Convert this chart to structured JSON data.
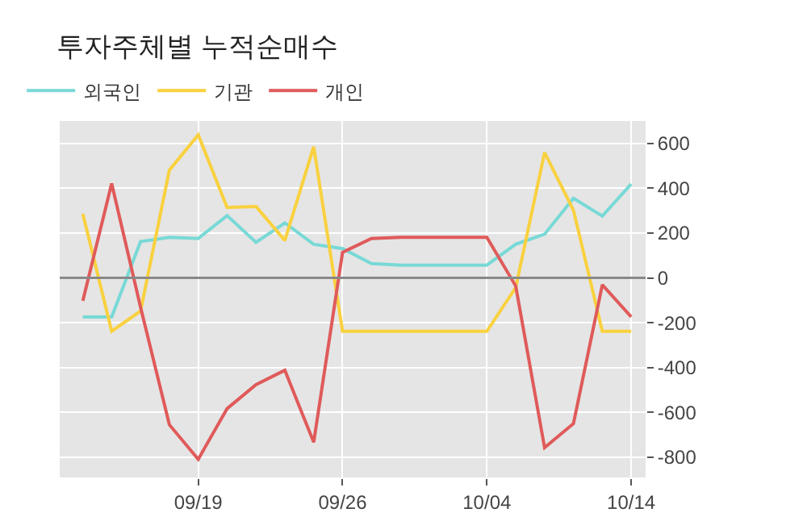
{
  "chart_data": {
    "type": "line",
    "title": "투자주체별 누적순매수",
    "categories": [
      null,
      null,
      null,
      null,
      "09/19",
      null,
      null,
      null,
      null,
      "09/26",
      null,
      null,
      null,
      null,
      "10/04",
      null,
      null,
      null,
      null,
      "10/14"
    ],
    "series": [
      {
        "name": "외국인",
        "color": "#78d9d6",
        "values": [
          -174,
          -174,
          162,
          181,
          176,
          278,
          159,
          245,
          150,
          131,
          64,
          57,
          57,
          57,
          57,
          150,
          195,
          355,
          276,
          419
        ]
      },
      {
        "name": "기관",
        "color": "#f9d13f",
        "values": [
          286,
          -238,
          -148,
          481,
          638,
          314,
          319,
          167,
          585,
          -238,
          -238,
          -238,
          -238,
          -238,
          -238,
          -43,
          559,
          302,
          -238,
          -238
        ]
      },
      {
        "name": "개인",
        "color": "#e05a5a",
        "values": [
          -102,
          421,
          -130,
          -655,
          -809,
          -583,
          -476,
          -412,
          -733,
          114,
          176,
          181,
          181,
          181,
          181,
          -36,
          -757,
          -650,
          -31,
          -174
        ]
      }
    ],
    "ylim": [
      -890,
      700
    ],
    "yticks": [
      -800,
      -600,
      -400,
      -200,
      0,
      200,
      400,
      600
    ],
    "ref_lines": [
      {
        "axis": "y",
        "value": 0,
        "color": "#888888"
      }
    ],
    "grid": true,
    "legend": "top left",
    "marker": "none",
    "line_style": "solid"
  }
}
